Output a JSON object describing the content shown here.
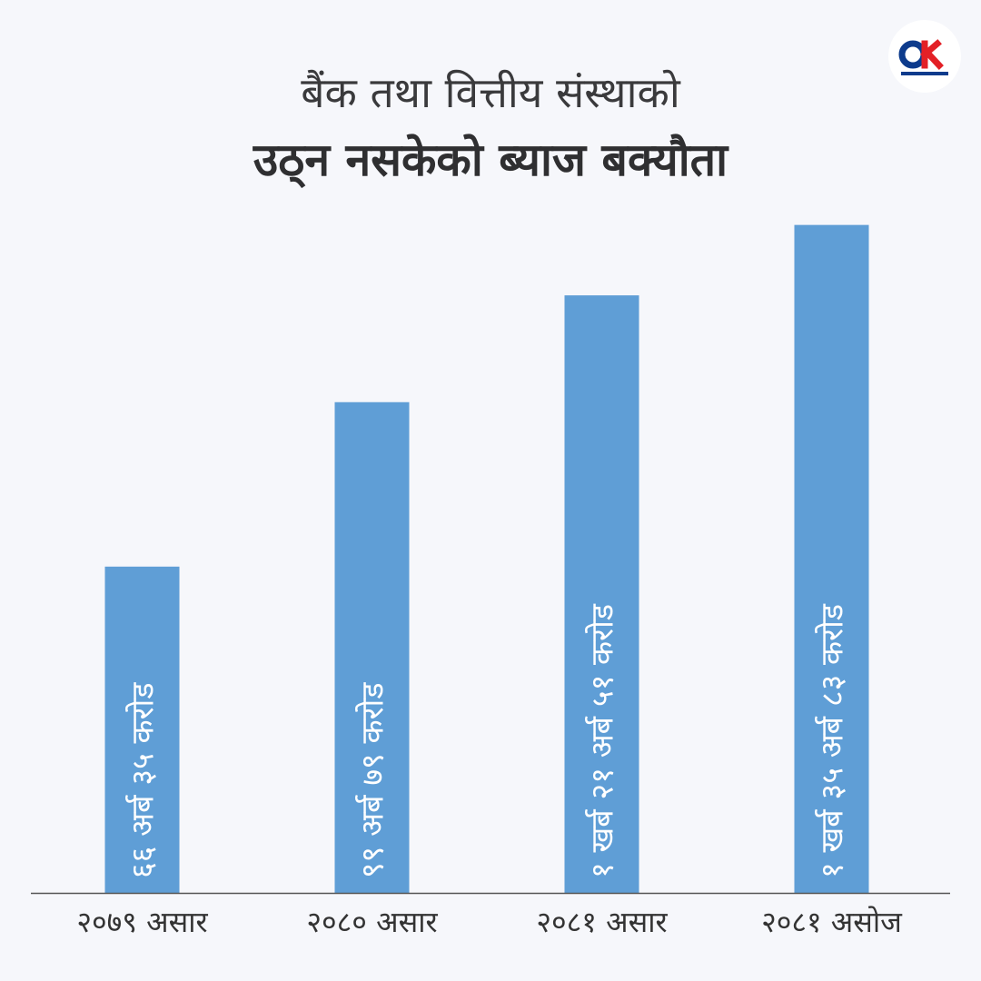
{
  "header": {
    "title_line1": "बैंक तथा वित्तीय संस्थाको",
    "title_line2": "उठ्न नसकेको ब्याज बक्यौता"
  },
  "logo": {
    "brand": "onlinekhabar",
    "colors": {
      "o": "#0d3b8c",
      "k": "#e32026"
    }
  },
  "colors": {
    "bar": "#5f9ed6",
    "background": "#f6f7fb",
    "axis": "#555555",
    "label": "#ffffff",
    "category": "#333333"
  },
  "chart_data": {
    "type": "bar",
    "title": "बैंक तथा वित्तीय संस्थाको उठ्न नसकेको ब्याज बक्यौता",
    "categories": [
      "२०७९ असार",
      "२०८० असार",
      "२०८१ असार",
      "२०८१ असोज"
    ],
    "values": [
      66.35,
      99.79,
      121.51,
      135.83
    ],
    "data_labels": [
      "६६ अर्ब ३५ करोड",
      "९९ अर्ब ७९ करोड",
      "१ खर्ब २१ अर्ब ५१ करोड",
      "१ खर्ब ३५ अर्ब ८३ करोड"
    ],
    "ylabel": "",
    "xlabel": "",
    "ylim": [
      0,
      145
    ],
    "grid": false,
    "legend": "none"
  }
}
